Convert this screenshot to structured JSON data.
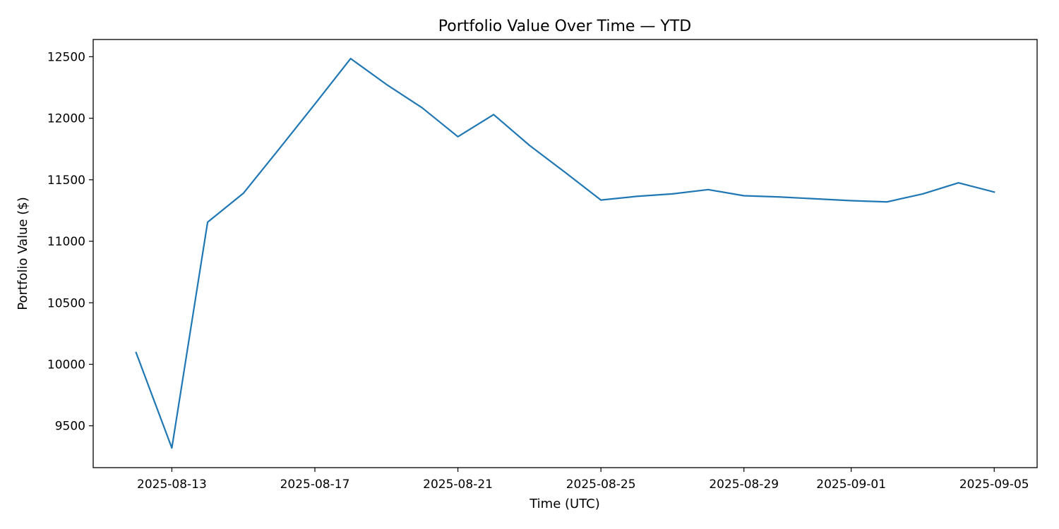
{
  "chart_data": {
    "type": "line",
    "title": "Portfolio Value Over Time — YTD",
    "xlabel": "Time (UTC)",
    "ylabel": "Portfolio Value ($)",
    "xlim": [
      "2025-08-10T19:12",
      "2025-09-06T04:48"
    ],
    "ylim": [
      9160,
      12640
    ],
    "xticks": [
      "2025-08-13",
      "2025-08-17",
      "2025-08-21",
      "2025-08-25",
      "2025-08-29",
      "2025-09-01",
      "2025-09-05"
    ],
    "yticks": [
      9500,
      10000,
      10500,
      11000,
      11500,
      12000,
      12500
    ],
    "grid": false,
    "legend": "none",
    "series": [
      {
        "color": "#1f77b4",
        "x": [
          "2025-08-12",
          "2025-08-13",
          "2025-08-14",
          "2025-08-15",
          "2025-08-16",
          "2025-08-17",
          "2025-08-18",
          "2025-08-19",
          "2025-08-20",
          "2025-08-21",
          "2025-08-22",
          "2025-08-23",
          "2025-08-24",
          "2025-08-25",
          "2025-08-26",
          "2025-08-27",
          "2025-08-28",
          "2025-08-29",
          "2025-08-30",
          "2025-08-31",
          "2025-09-01",
          "2025-09-02",
          "2025-09-03",
          "2025-09-04",
          "2025-09-05"
        ],
        "values": [
          10095,
          9320,
          11155,
          11390,
          11750,
          12115,
          12485,
          12275,
          12085,
          11850,
          12030,
          11780,
          11560,
          11335,
          11365,
          11385,
          11420,
          11370,
          11360,
          11345,
          11330,
          11320,
          11385,
          11475,
          11400
        ]
      }
    ]
  }
}
